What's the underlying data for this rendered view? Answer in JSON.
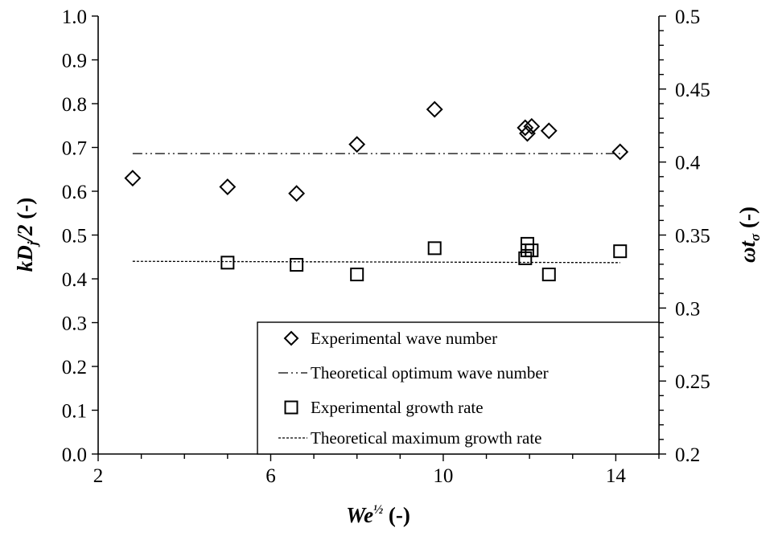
{
  "chart_data": {
    "type": "scatter",
    "title": "",
    "xlabel": {
      "main": "We",
      "sup": "½",
      "unit": " (-)"
    },
    "ylabel_left": {
      "main": "kD",
      "sub": "j",
      "rest": "/2",
      "unit": " (-)"
    },
    "ylabel_right": {
      "main": "ωt",
      "sub": "σ",
      "unit": " (-)"
    },
    "xlim": [
      2,
      15
    ],
    "ylim_left": [
      0.0,
      1.0
    ],
    "ylim_right": [
      0.2,
      0.5
    ],
    "x_ticks_major": [
      "2",
      "6",
      "10",
      "14"
    ],
    "y_ticks_left": [
      "0.0",
      "0.1",
      "0.2",
      "0.3",
      "0.4",
      "0.5",
      "0.6",
      "0.7",
      "0.8",
      "0.9",
      "1.0"
    ],
    "y_ticks_right": [
      "0.2",
      "0.25",
      "0.3",
      "0.35",
      "0.4",
      "0.45",
      "0.5"
    ],
    "grid": false,
    "legend_position": "bottom-right",
    "series": [
      {
        "name": "Experimental wave number",
        "axis": "left",
        "marker": "diamond",
        "x": [
          2.8,
          5.0,
          6.6,
          8.0,
          9.8,
          11.9,
          11.95,
          12.05,
          12.45,
          14.1
        ],
        "y": [
          0.63,
          0.61,
          0.595,
          0.707,
          0.787,
          0.745,
          0.732,
          0.748,
          0.738,
          0.69
        ]
      },
      {
        "name": "Theoretical optimum wave number",
        "axis": "left",
        "line": "dash-dot-dot",
        "x": [
          2.8,
          14.1
        ],
        "y": [
          0.686,
          0.686
        ]
      },
      {
        "name": "Experimental growth rate",
        "axis": "left",
        "marker": "square",
        "x": [
          5.0,
          6.6,
          8.0,
          9.8,
          11.9,
          11.95,
          11.95,
          12.05,
          12.45,
          14.1
        ],
        "y": [
          0.437,
          0.432,
          0.41,
          0.47,
          0.447,
          0.48,
          0.465,
          0.465,
          0.41,
          0.463
        ]
      },
      {
        "name": "Theoretical maximum growth rate",
        "axis": "left",
        "line": "dotted",
        "x": [
          2.8,
          14.1
        ],
        "y": [
          0.44,
          0.437
        ]
      }
    ]
  }
}
